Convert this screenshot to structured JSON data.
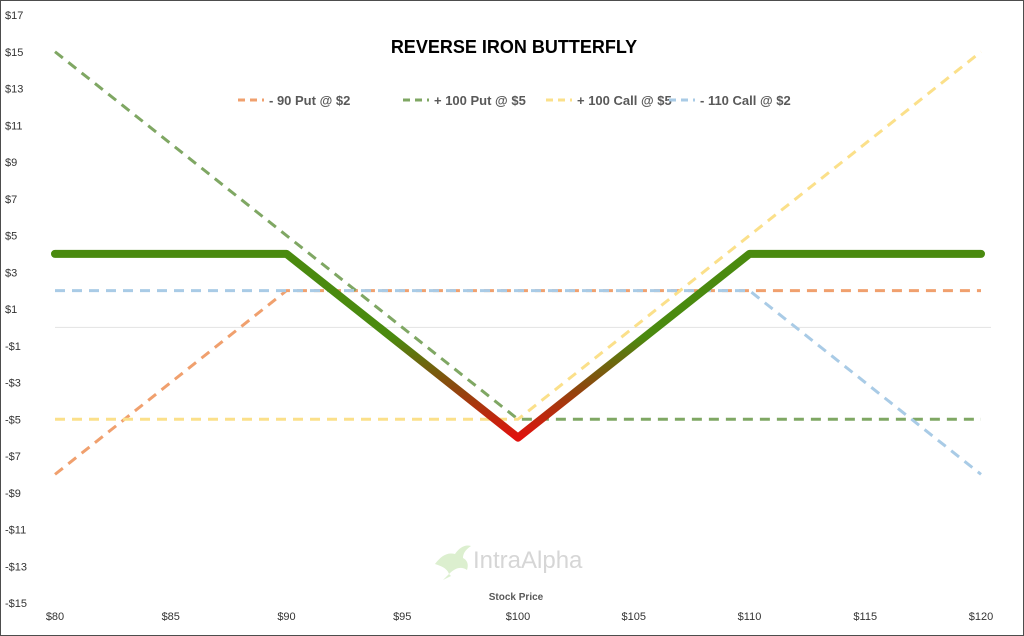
{
  "chart_data": {
    "type": "line",
    "title": "REVERSE IRON BUTTERFLY",
    "xlabel": "Stock Price",
    "ylabel": "",
    "xlim": [
      80,
      120
    ],
    "ylim": [
      -15,
      17
    ],
    "x_ticks": [
      80,
      85,
      90,
      95,
      100,
      105,
      110,
      115,
      120
    ],
    "x_tick_labels": [
      "$80",
      "$85",
      "$90",
      "$95",
      "$100",
      "$105",
      "$110",
      "$115",
      "$120"
    ],
    "y_ticks": [
      17,
      15,
      13,
      11,
      9,
      7,
      5,
      3,
      1,
      -1,
      -3,
      -5,
      -7,
      -9,
      -11,
      -13,
      -15
    ],
    "y_tick_labels": [
      "$17",
      "$15",
      "$13",
      "$11",
      "$9",
      "$7",
      "$5",
      "$3",
      "$1",
      "-$1",
      "-$3",
      "-$5",
      "-$7",
      "-$9",
      "-$11",
      "-$13",
      "-$15"
    ],
    "grid": false,
    "legend_position": "top",
    "series": [
      {
        "name": "- 90 Put @ $2",
        "style": "dashed",
        "color": "#f0a06e",
        "x": [
          80,
          90,
          120
        ],
        "y": [
          -8,
          2,
          2
        ]
      },
      {
        "name": "+ 100 Put @ $5",
        "style": "dashed",
        "color": "#7fa763",
        "x": [
          80,
          100,
          120
        ],
        "y": [
          15,
          -5,
          -5
        ]
      },
      {
        "name": "+ 100 Call @ $5",
        "style": "dashed",
        "color": "#fbe08a",
        "x": [
          80,
          100,
          120
        ],
        "y": [
          -5,
          -5,
          15
        ]
      },
      {
        "name": "- 110 Call @ $2",
        "style": "dashed",
        "color": "#a9cbe6",
        "x": [
          80,
          110,
          120
        ],
        "y": [
          2,
          2,
          -8
        ]
      },
      {
        "style": "solid",
        "color": "#4a8a0f",
        "x": [
          80,
          90,
          100,
          110,
          120
        ],
        "y": [
          4,
          4,
          -6,
          4,
          4
        ]
      }
    ],
    "loss_color": "#e0120e",
    "watermark": "IntraAlpha"
  }
}
